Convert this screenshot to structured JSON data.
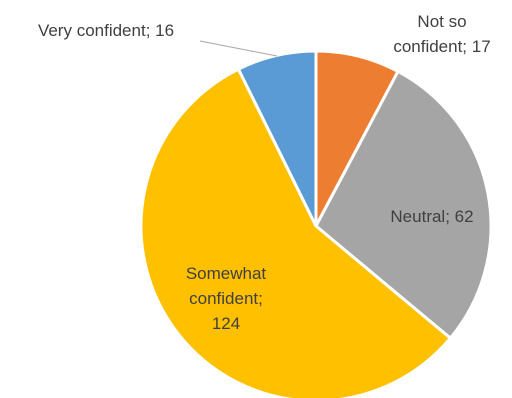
{
  "chart_data": {
    "type": "pie",
    "title": "",
    "slices": [
      {
        "label": "Not so confident",
        "value": 17,
        "color": "#ED7D31",
        "label_lines": [
          "Not so",
          "confident; 17"
        ]
      },
      {
        "label": "Neutral",
        "value": 62,
        "color": "#A5A5A5",
        "label_lines": [
          "Neutral; 62"
        ]
      },
      {
        "label": "Somewhat confident",
        "value": 124,
        "color": "#FFC000",
        "label_lines": [
          "Somewhat",
          "confident;",
          "124"
        ]
      },
      {
        "label": "Very confident",
        "value": 16,
        "color": "#5B9BD5",
        "label_lines": [
          "Very confident; 16"
        ]
      }
    ],
    "start": "top, clockwise",
    "legend": "none",
    "data_labels": "category; value"
  }
}
